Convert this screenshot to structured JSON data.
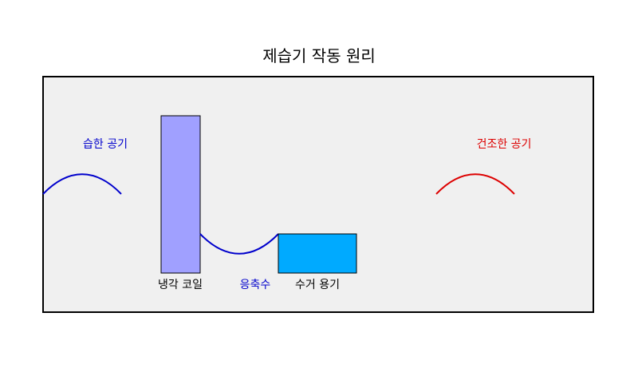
{
  "title": "제습기 작동 원리",
  "labels": {
    "humid_air": "습한 공기",
    "dry_air": "건조한 공기",
    "cooling_coil": "냉각 코일",
    "condensate": "응축수",
    "collection_tank": "수거 용기"
  },
  "colors": {
    "background_panel": "#f0f0f0",
    "panel_border": "#000000",
    "cooling_coil_fill": "#a0a0ff",
    "tank_fill": "#00aaff",
    "humid_air": "#0000cc",
    "dry_air": "#dd0000",
    "condensate": "#0000cc",
    "text": "#000000"
  },
  "icons": {
    "humid_air": "wave-icon",
    "dry_air": "wave-icon",
    "condensate": "water-flow-icon"
  }
}
